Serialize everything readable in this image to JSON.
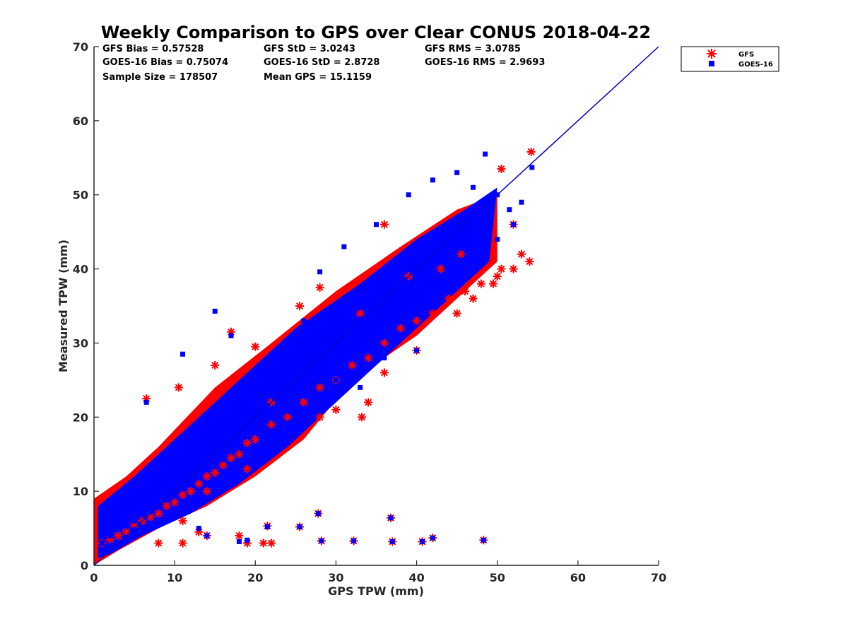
{
  "chart_data": {
    "type": "scatter",
    "title": "Weekly Comparison to GPS over Clear CONUS 2018-04-22",
    "xlabel": "GPS TPW (mm)",
    "ylabel": "Measured TPW (mm)",
    "xlim": [
      0,
      70
    ],
    "ylim": [
      0,
      70
    ],
    "xticks": [
      "0",
      "10",
      "20",
      "30",
      "40",
      "50",
      "60",
      "70"
    ],
    "yticks": [
      "0",
      "10",
      "20",
      "30",
      "40",
      "50",
      "60",
      "70"
    ],
    "grid": false,
    "legend_position": "outside top-right",
    "stats": [
      [
        "GFS Bias = 0.57528",
        "GFS StD = 3.0243",
        "GFS RMS = 3.0785"
      ],
      [
        "GOES-16 Bias = 0.75074",
        "GOES-16 StD = 2.8728",
        "GOES-16 RMS = 2.9693"
      ],
      [
        "Sample Size = 178507",
        "Mean GPS = 15.1159",
        ""
      ]
    ],
    "one_to_one_line": {
      "x": [
        0,
        70
      ],
      "y": [
        0,
        70
      ],
      "color": "#0000cc"
    },
    "series": [
      {
        "name": "GFS",
        "marker": "asterisk",
        "color": "#ff0000",
        "x": [
          1,
          2,
          3,
          4,
          5,
          6,
          7,
          8,
          9,
          10,
          11,
          12,
          13,
          14,
          15,
          16,
          17,
          18,
          19,
          20,
          22,
          24,
          26,
          28,
          30,
          32,
          34,
          36,
          38,
          40,
          42,
          44,
          46,
          48,
          50,
          52,
          54,
          6.5,
          10.5,
          15,
          17,
          20,
          25.5,
          28,
          33,
          36,
          39,
          43,
          45.5,
          46,
          49.5,
          50.5,
          52,
          53,
          54.2,
          50.5,
          47,
          45,
          40,
          36,
          34,
          33.2,
          30,
          28,
          22,
          19,
          14,
          11,
          8,
          11,
          13,
          14,
          18,
          19,
          21,
          22,
          21.5,
          25.5,
          27.8,
          28.2,
          32.2,
          36.8,
          37,
          40.7,
          42,
          48.3
        ],
        "y": [
          3,
          3.5,
          4,
          4.5,
          5.5,
          6,
          6.5,
          7,
          8,
          8.5,
          9.5,
          10,
          11,
          12,
          12.5,
          13.5,
          14.5,
          15,
          16.5,
          17,
          19,
          20,
          22,
          24,
          25,
          27,
          28,
          30,
          32,
          33,
          34,
          36,
          37,
          38,
          39,
          40,
          41,
          22.5,
          24,
          27,
          31.5,
          29.5,
          35,
          37.5,
          34,
          46,
          39,
          40,
          42,
          37,
          38,
          53.5,
          46,
          42,
          55.8,
          40,
          36,
          34,
          29,
          26,
          22,
          20,
          21,
          20,
          22,
          13,
          10,
          6,
          3,
          3,
          4.5,
          4,
          4,
          3,
          3,
          3,
          5.3,
          5.2,
          7,
          3.3,
          3.3,
          6.4,
          3.2,
          3.2,
          3.7,
          3.4
        ]
      },
      {
        "name": "GOES-16",
        "marker": "square",
        "color": "#0000ff",
        "x": [
          1,
          2,
          3,
          4,
          5,
          6,
          7,
          8,
          9,
          10,
          11,
          12,
          13,
          14,
          15,
          16,
          17,
          18,
          19,
          20,
          22,
          24,
          26,
          28,
          30,
          32,
          34,
          36,
          38,
          40,
          42,
          44,
          46,
          48,
          50,
          52,
          6.5,
          11,
          15,
          17,
          26,
          28,
          31,
          35,
          39,
          42,
          45,
          47,
          48.5,
          50,
          51.5,
          53,
          54.3,
          40,
          36,
          33,
          30,
          25,
          20,
          13,
          14,
          18,
          19,
          21.5,
          25.5,
          27.8,
          28.2,
          32.2,
          36.8,
          37,
          40.7,
          42,
          48.3
        ],
        "y": [
          3,
          4,
          5,
          5.5,
          6,
          7,
          7.5,
          8.5,
          9,
          10,
          11,
          11.5,
          12.5,
          13,
          14,
          15,
          15.5,
          16.5,
          17.5,
          18,
          20,
          21.5,
          23,
          25,
          27,
          29,
          30,
          31,
          33,
          35,
          37,
          38,
          40,
          42,
          44,
          46,
          22,
          28.5,
          34.3,
          31,
          33,
          39.6,
          43,
          46,
          50,
          52,
          53,
          51,
          55.5,
          50,
          48,
          49,
          53.7,
          29,
          28,
          24,
          25,
          20,
          18,
          5,
          4,
          3.2,
          3.4,
          5.2,
          5.2,
          7,
          3.3,
          3.3,
          6.4,
          3.2,
          3.2,
          3.7,
          3.4
        ]
      }
    ]
  }
}
